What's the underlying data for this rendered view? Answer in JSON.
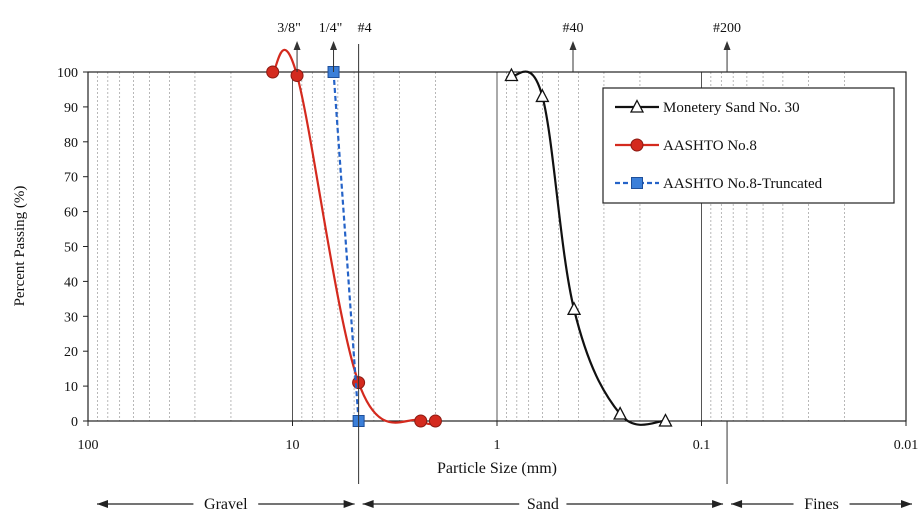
{
  "chart_data": {
    "type": "line",
    "xlabel": "Particle Size (mm)",
    "ylabel": "Percent Passing (%)",
    "xscale": "log",
    "xaxis_direction": "descending",
    "xlim": [
      100,
      0.01
    ],
    "ylim": [
      0,
      100
    ],
    "x_ticks": [
      "100",
      "10",
      "1",
      "0.1",
      "0.01"
    ],
    "x_tick_values": [
      100,
      10,
      1,
      0.1,
      0.01
    ],
    "y_ticks": [
      "0",
      "10",
      "20",
      "30",
      "40",
      "50",
      "60",
      "70",
      "80",
      "90",
      "100"
    ],
    "grid": "vertical minor log gridlines",
    "legend_position": "top-right",
    "sieves": [
      {
        "label": "3/8\"",
        "size": 9.5
      },
      {
        "label": "1/4\"",
        "size": 6.3
      },
      {
        "label": "#4",
        "size": 4.75
      },
      {
        "label": "#40",
        "size": 0.425
      },
      {
        "label": "#200",
        "size": 0.075
      }
    ],
    "regions": [
      {
        "label": "Gravel",
        "from": 100,
        "to": 4.75
      },
      {
        "label": "Sand",
        "from": 4.75,
        "to": 0.075
      },
      {
        "label": "Fines",
        "from": 0.075,
        "to": 0.01
      }
    ],
    "series": [
      {
        "name": "Monetery Sand No. 30",
        "color": "#111111",
        "marker": "triangle",
        "dash": "solid",
        "x": [
          0.85,
          0.6,
          0.42,
          0.25,
          0.15
        ],
        "y": [
          99,
          93,
          32,
          2,
          0
        ]
      },
      {
        "name": "AASHTO No.8",
        "color": "#d42a1e",
        "marker": "circle",
        "dash": "solid",
        "x": [
          12.5,
          9.5,
          4.75,
          2.36,
          2.0
        ],
        "y": [
          100,
          99,
          11,
          0,
          0
        ]
      },
      {
        "name": "AASHTO No.8-Truncated",
        "color": "#2563c8",
        "marker": "square",
        "dash": "dashed",
        "x": [
          6.3,
          4.75
        ],
        "y": [
          100,
          0
        ]
      }
    ]
  }
}
